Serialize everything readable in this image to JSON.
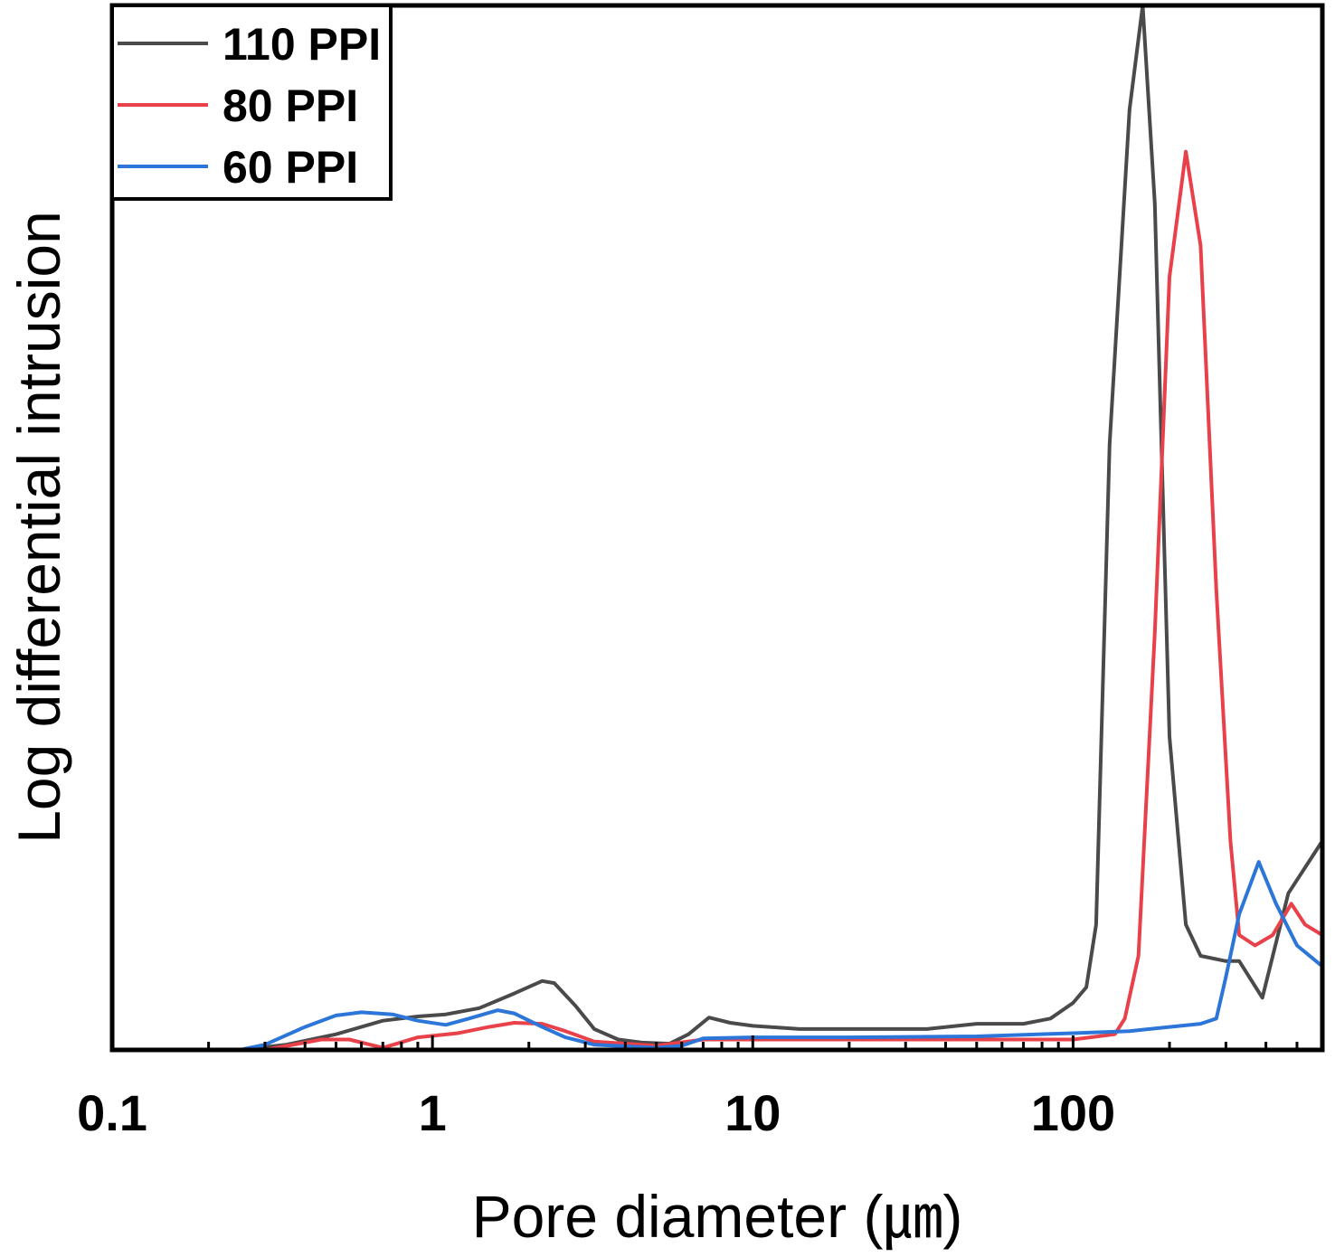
{
  "chart_data": {
    "type": "line",
    "xlabel": "Pore diameter (㎛)",
    "ylabel": "Log differential intrusion",
    "x_scale": "log",
    "xlim": [
      0.1,
      600
    ],
    "ylim": [
      0,
      100
    ],
    "x_ticks": [
      {
        "value": 0.1,
        "label": "0.1"
      },
      {
        "value": 1,
        "label": "1"
      },
      {
        "value": 10,
        "label": "10"
      },
      {
        "value": 100,
        "label": "100"
      }
    ],
    "y_ticks_shown": false,
    "grid": false,
    "legend_position": "top-left",
    "series": [
      {
        "name": "110 PPI",
        "color": "#4a4a4a",
        "points": [
          [
            0.1,
            0
          ],
          [
            0.25,
            0
          ],
          [
            0.35,
            0.5
          ],
          [
            0.5,
            1.5
          ],
          [
            0.7,
            2.8
          ],
          [
            0.9,
            3.2
          ],
          [
            1.1,
            3.4
          ],
          [
            1.4,
            4
          ],
          [
            1.8,
            5.4
          ],
          [
            2.2,
            6.6
          ],
          [
            2.4,
            6.4
          ],
          [
            2.8,
            4.2
          ],
          [
            3.2,
            2
          ],
          [
            3.8,
            1
          ],
          [
            4.5,
            0.7
          ],
          [
            5.5,
            0.6
          ],
          [
            6.3,
            1.5
          ],
          [
            7.3,
            3.1
          ],
          [
            8.5,
            2.6
          ],
          [
            10,
            2.3
          ],
          [
            14,
            2
          ],
          [
            20,
            2
          ],
          [
            35,
            2
          ],
          [
            50,
            2.5
          ],
          [
            70,
            2.5
          ],
          [
            85,
            3
          ],
          [
            100,
            4.5
          ],
          [
            110,
            6
          ],
          [
            118,
            12
          ],
          [
            130,
            58
          ],
          [
            150,
            90
          ],
          [
            165,
            100
          ],
          [
            180,
            81
          ],
          [
            200,
            30
          ],
          [
            225,
            12
          ],
          [
            250,
            9
          ],
          [
            300,
            8.5
          ],
          [
            330,
            8.5
          ],
          [
            390,
            5
          ],
          [
            470,
            15
          ],
          [
            600,
            20
          ]
        ]
      },
      {
        "name": "80 PPI",
        "color": "#e8414a",
        "points": [
          [
            0.1,
            0
          ],
          [
            0.3,
            0
          ],
          [
            0.45,
            1
          ],
          [
            0.55,
            1
          ],
          [
            0.7,
            0.2
          ],
          [
            0.9,
            1.2
          ],
          [
            1.2,
            1.6
          ],
          [
            1.5,
            2.2
          ],
          [
            1.8,
            2.6
          ],
          [
            2.2,
            2.5
          ],
          [
            2.6,
            1.8
          ],
          [
            3.2,
            0.8
          ],
          [
            5,
            0.4
          ],
          [
            7,
            1
          ],
          [
            10,
            1
          ],
          [
            20,
            1
          ],
          [
            50,
            1
          ],
          [
            100,
            1
          ],
          [
            135,
            1.5
          ],
          [
            145,
            3
          ],
          [
            160,
            9
          ],
          [
            180,
            40
          ],
          [
            200,
            74
          ],
          [
            225,
            86
          ],
          [
            250,
            77
          ],
          [
            280,
            44
          ],
          [
            310,
            20
          ],
          [
            330,
            11
          ],
          [
            370,
            10
          ],
          [
            420,
            11
          ],
          [
            480,
            14
          ],
          [
            530,
            12
          ],
          [
            600,
            11
          ]
        ]
      },
      {
        "name": "60 PPI",
        "color": "#2b76d8",
        "points": [
          [
            0.1,
            0
          ],
          [
            0.25,
            0
          ],
          [
            0.3,
            0.5
          ],
          [
            0.4,
            2.2
          ],
          [
            0.5,
            3.3
          ],
          [
            0.6,
            3.6
          ],
          [
            0.75,
            3.4
          ],
          [
            0.9,
            2.8
          ],
          [
            1.1,
            2.4
          ],
          [
            1.3,
            3
          ],
          [
            1.6,
            3.8
          ],
          [
            1.8,
            3.5
          ],
          [
            2.2,
            2.2
          ],
          [
            2.6,
            1.2
          ],
          [
            3.2,
            0.5
          ],
          [
            5,
            0.2
          ],
          [
            6,
            0.4
          ],
          [
            7,
            1.1
          ],
          [
            10,
            1.2
          ],
          [
            20,
            1.2
          ],
          [
            50,
            1.3
          ],
          [
            100,
            1.6
          ],
          [
            150,
            1.8
          ],
          [
            200,
            2.2
          ],
          [
            250,
            2.5
          ],
          [
            280,
            3
          ],
          [
            300,
            7
          ],
          [
            330,
            13
          ],
          [
            380,
            18
          ],
          [
            430,
            14
          ],
          [
            500,
            10
          ],
          [
            600,
            8
          ]
        ]
      }
    ]
  }
}
